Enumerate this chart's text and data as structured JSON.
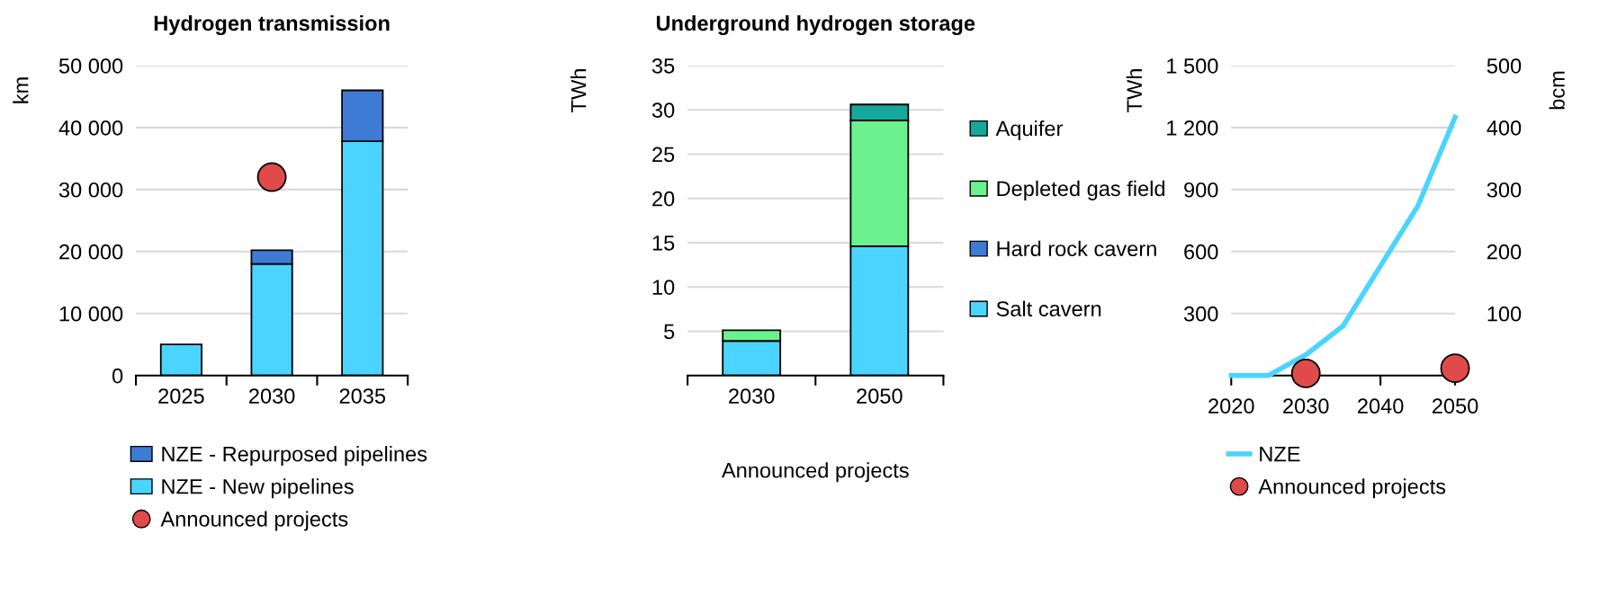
{
  "chart_data": [
    {
      "type": "bar",
      "title": "Hydrogen transmission",
      "ylabel": "km",
      "categories": [
        "2025",
        "2030",
        "2035"
      ],
      "stacked": true,
      "series": [
        {
          "name": "NZE - New pipelines",
          "color": "#4ad4ff",
          "values": [
            5000,
            18000,
            37800
          ]
        },
        {
          "name": "NZE - Repurposed pipelines",
          "color": "#3d7bd4",
          "values": [
            null,
            2200,
            8200
          ]
        },
        {
          "name": "Announced projects",
          "type": "scatter",
          "color": "#e04a4a",
          "values": [
            null,
            32000,
            null
          ]
        }
      ],
      "ylim": [
        0,
        50000
      ],
      "yticks": [
        {
          "value": 0,
          "label": "0"
        },
        {
          "value": 10000,
          "label": "10 000"
        },
        {
          "value": 20000,
          "label": "20 000"
        },
        {
          "value": 30000,
          "label": "30 000"
        },
        {
          "value": 40000,
          "label": "40 000"
        },
        {
          "value": 50000,
          "label": "50 000"
        }
      ],
      "grid": "y",
      "legend": "bottom"
    },
    {
      "type": "bar",
      "title": "Underground hydrogen storage",
      "ylabel": "TWh",
      "categories": [
        "2030",
        "2050"
      ],
      "stacked": true,
      "series": [
        {
          "name": "Salt cavern",
          "color": "#4ad4ff",
          "values": [
            3.9,
            14.6
          ]
        },
        {
          "name": "Hard rock cavern",
          "color": "#3d7bd4",
          "values": [
            null,
            null
          ]
        },
        {
          "name": "Depleted gas field",
          "color": "#6af28f",
          "values": [
            1.2,
            14.2
          ]
        },
        {
          "name": "Aquifer",
          "color": "#14a99b",
          "values": [
            null,
            1.8
          ]
        }
      ],
      "ylim": [
        0,
        35
      ],
      "yticks": [
        {
          "value": 0,
          "label": null
        },
        5,
        10,
        15,
        20,
        25,
        30,
        35
      ],
      "annotations": [
        "Announced projects"
      ],
      "grid": "y",
      "legend": "right"
    },
    {
      "type": "line",
      "ylabel": "TWh",
      "y2label": "bcm",
      "x": [
        2020,
        2025,
        2030,
        2035,
        2040,
        2045,
        2050
      ],
      "series": [
        {
          "name": "NZE",
          "color": "#4ad4ff",
          "values": [
            0,
            0,
            100,
            240,
            530,
            820,
            1250
          ]
        },
        {
          "name": "Announced projects",
          "type": "scatter",
          "color": "#e04a4a",
          "x": [
            2030,
            2050
          ],
          "values": [
            10,
            35
          ]
        }
      ],
      "xlim": [
        2020,
        2050
      ],
      "xticks": [
        2020,
        2030,
        2040,
        2050
      ],
      "ylim": [
        0,
        1500
      ],
      "yticks": [
        {
          "value": 0,
          "label": null
        },
        {
          "value": 300,
          "label": "300"
        },
        {
          "value": 600,
          "label": "600"
        },
        {
          "value": 900,
          "label": "900"
        },
        {
          "value": 1200,
          "label": "1 200"
        },
        {
          "value": 1500,
          "label": "1 500"
        }
      ],
      "y2lim": [
        0,
        500
      ],
      "y2ticks": [
        {
          "value": 0,
          "label": null
        },
        100,
        200,
        300,
        400,
        500
      ],
      "grid": "y",
      "legend": "bottom"
    }
  ]
}
